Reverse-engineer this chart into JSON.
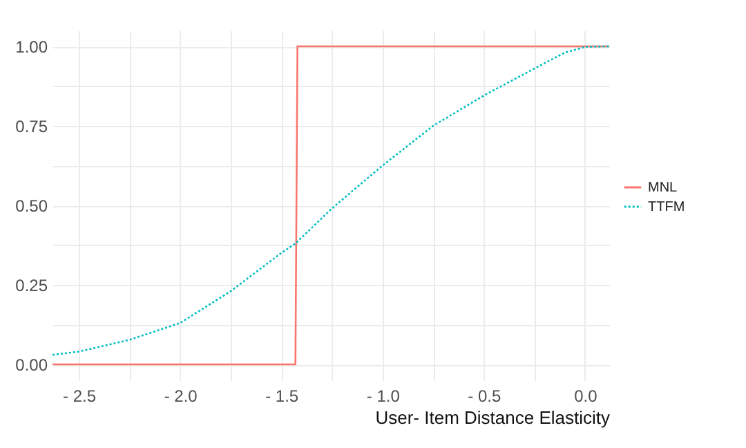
{
  "chart_data": {
    "type": "line",
    "xlabel": "User- Item Distance Elasticity",
    "xlim": [
      -2.63,
      0.12
    ],
    "ylim": [
      -0.05,
      1.05
    ],
    "xticks": [
      {
        "value": -2.5,
        "label": "- 2.5"
      },
      {
        "value": -2.25,
        "label": null
      },
      {
        "value": -2.0,
        "label": "- 2.0"
      },
      {
        "value": -1.75,
        "label": null
      },
      {
        "value": -1.5,
        "label": "- 1.5"
      },
      {
        "value": -1.25,
        "label": null
      },
      {
        "value": -1.0,
        "label": "- 1.0"
      },
      {
        "value": -0.75,
        "label": null
      },
      {
        "value": -0.5,
        "label": "- 0.5"
      },
      {
        "value": -0.25,
        "label": null
      },
      {
        "value": 0.0,
        "label": "0.0"
      }
    ],
    "yticks": [
      {
        "value": 0,
        "label": "0.00"
      },
      {
        "value": 0.125,
        "label": null
      },
      {
        "value": 0.25,
        "label": "0.25"
      },
      {
        "value": 0.375,
        "label": null
      },
      {
        "value": 0.5,
        "label": "0.50"
      },
      {
        "value": 0.625,
        "label": null
      },
      {
        "value": 0.75,
        "label": "0.75"
      },
      {
        "value": 0.875,
        "label": null
      },
      {
        "value": 1,
        "label": "1.00"
      }
    ],
    "grid": true,
    "legend": "right",
    "series": [
      {
        "name": "MNL",
        "color": "#f8766d",
        "line_style": "solid",
        "x": [
          -2.63,
          -1.43,
          -1.42,
          0.12
        ],
        "values": [
          0,
          0,
          1,
          1
        ]
      },
      {
        "name": "TTFM",
        "color": "#00bfc4",
        "line_style": "dotted",
        "x": [
          -2.63,
          -2.5,
          -2.25,
          -2.0,
          -1.75,
          -1.5,
          -1.43,
          -1.25,
          -1.0,
          -0.75,
          -0.5,
          -0.25,
          -0.1,
          0.0,
          0.12
        ],
        "values": [
          0.03,
          0.04,
          0.077,
          0.13,
          0.23,
          0.35,
          0.38,
          0.49,
          0.625,
          0.75,
          0.845,
          0.93,
          0.98,
          0.998,
          1.0
        ]
      }
    ]
  }
}
